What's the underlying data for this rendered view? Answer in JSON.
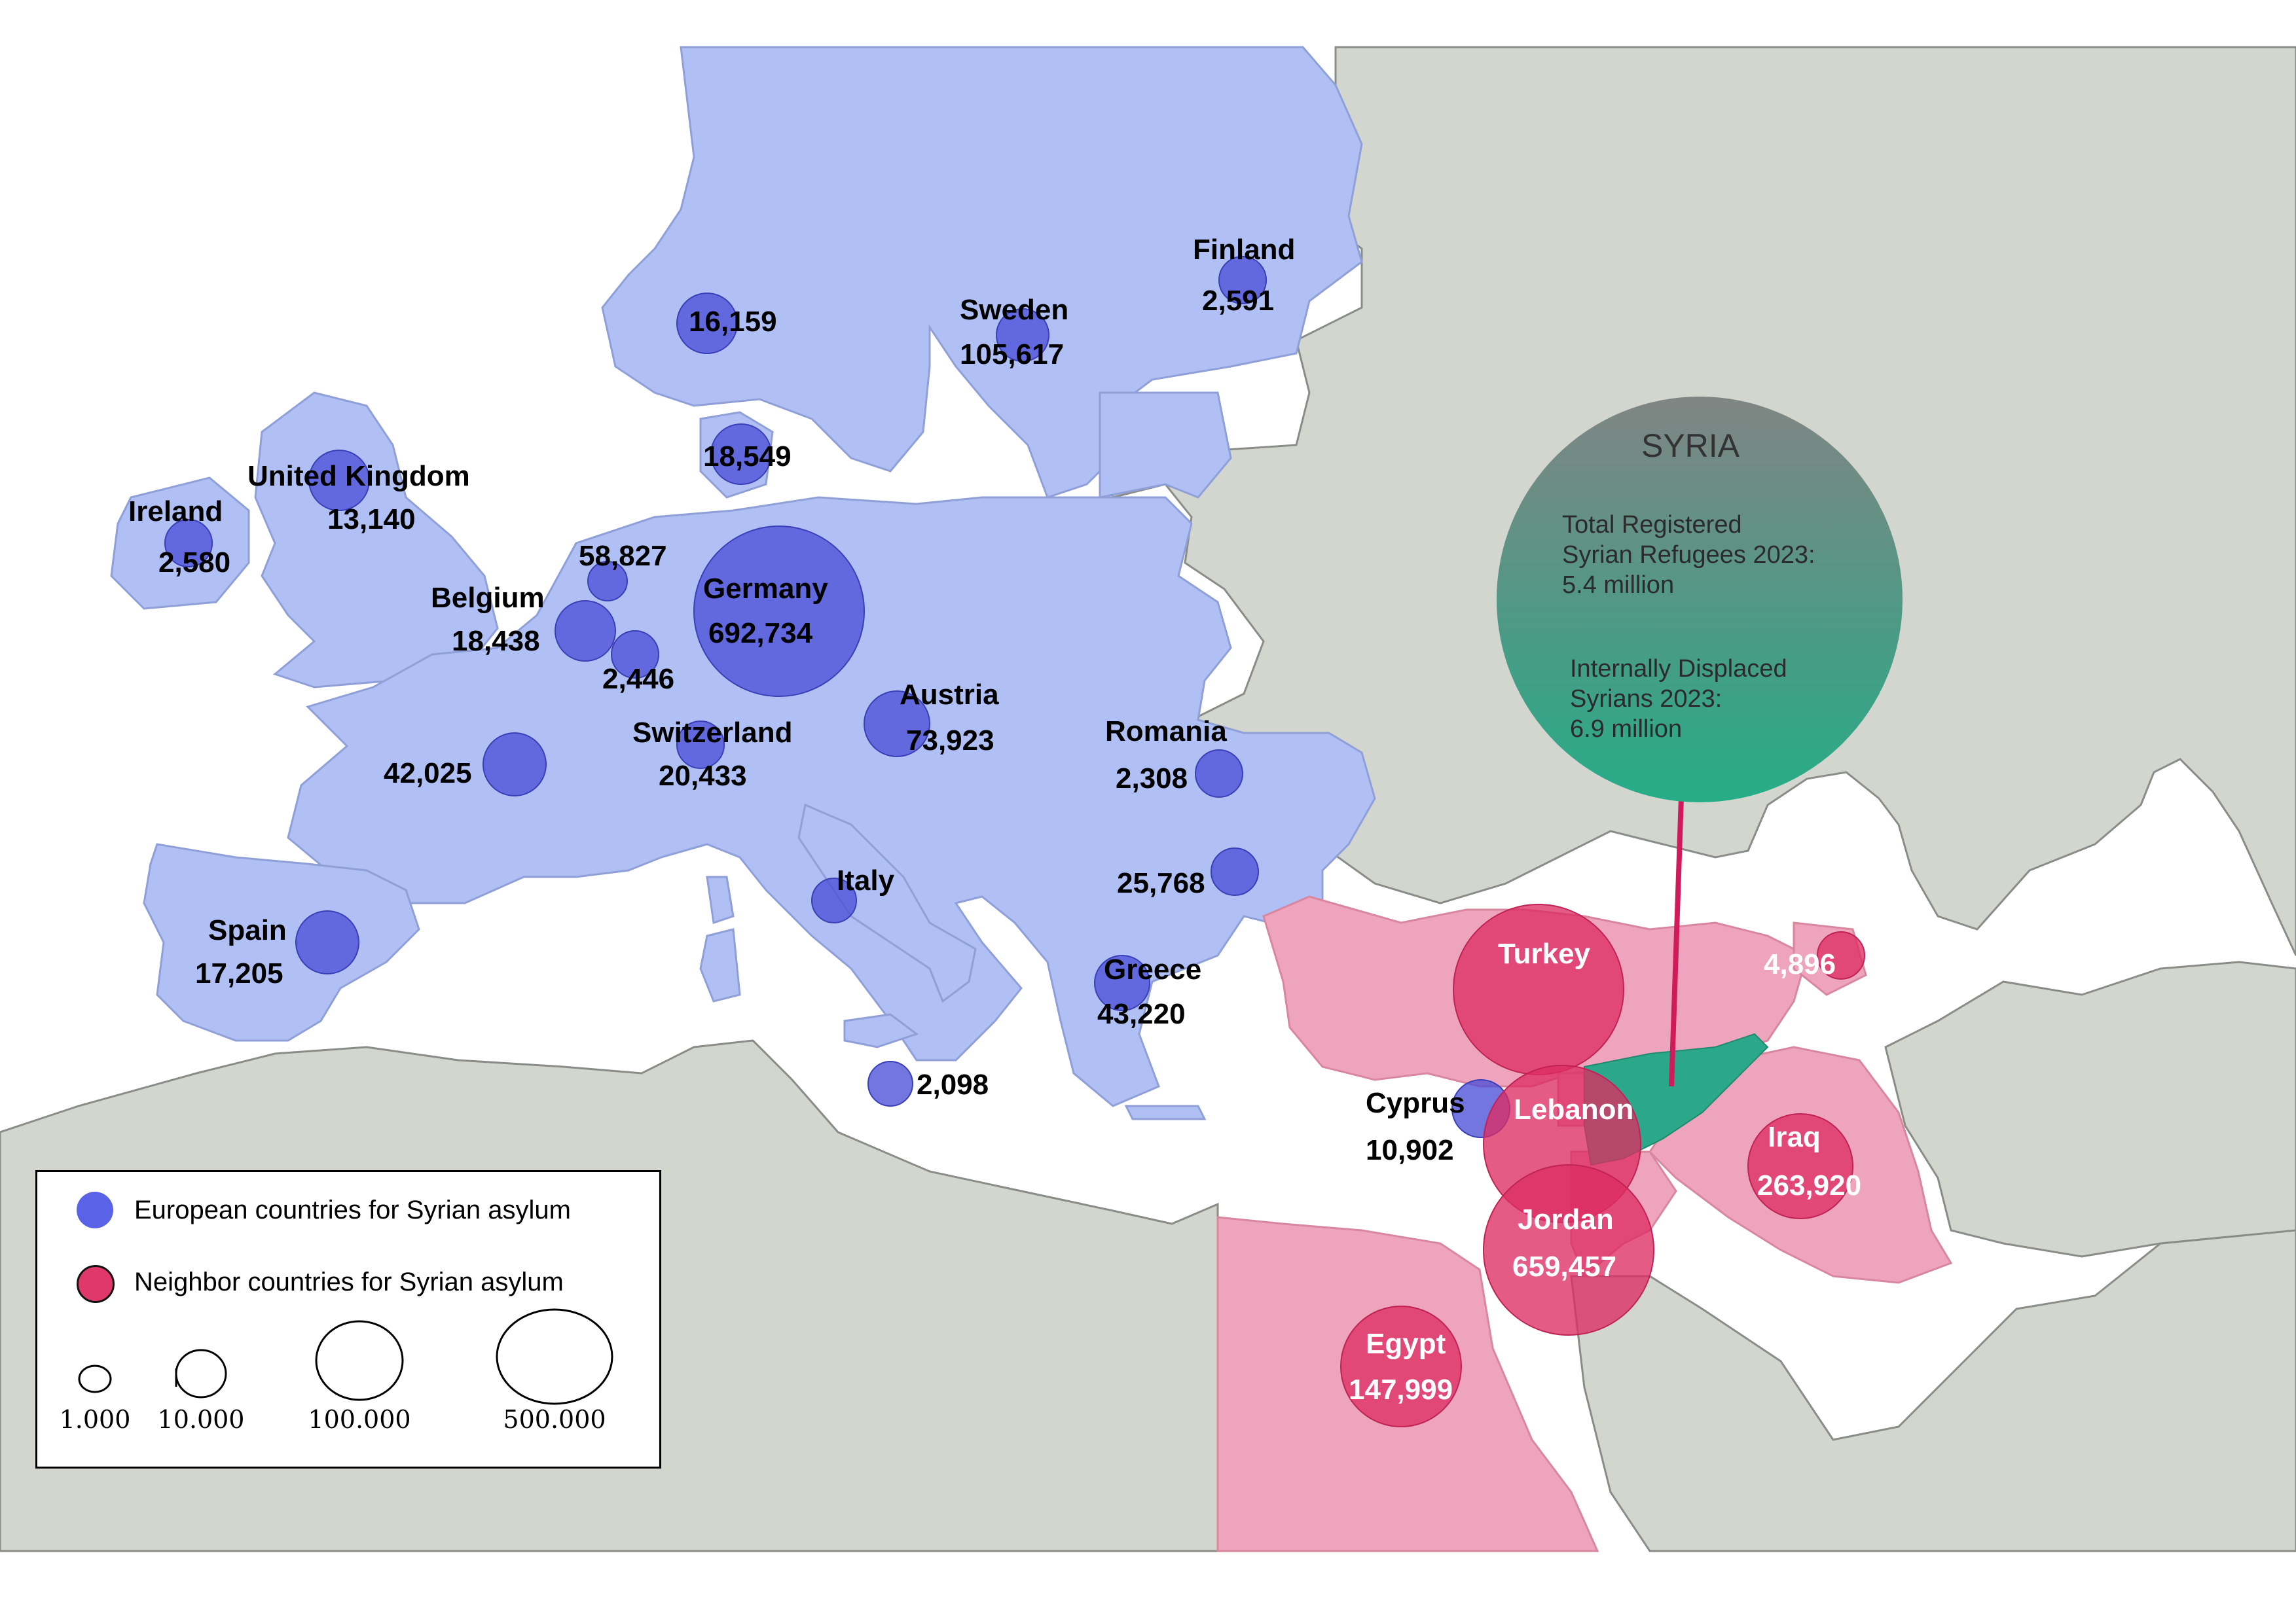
{
  "colors": {
    "background_land": "#d3d6cf",
    "sea": "#ffffff",
    "europe_fill": "#b0c0f4",
    "neighbor_fill": "#efa4bd",
    "european_bubble": "#5a5fe0",
    "neighbor_bubble": "#e03a6b",
    "syria_fill": "#2aa889"
  },
  "syria_callout": {
    "title": "SYRIA",
    "line1": "Total Registered",
    "line2": "Syrian Refugees 2023:",
    "line3": "5.4 million",
    "line4": "Internally Displaced",
    "line5": "Syrians 2023:",
    "line6": "6.9 million"
  },
  "countries": {
    "norway": {
      "value": "16,159",
      "refugees": 16159
    },
    "sweden": {
      "name": "Sweden",
      "value": "105,617",
      "refugees": 105617
    },
    "finland": {
      "name": "Finland",
      "value": "2,591",
      "refugees": 2591
    },
    "denmark": {
      "value": "18,549",
      "refugees": 18549
    },
    "uk": {
      "name": "United Kingdom",
      "value": "13,140",
      "refugees": 13140
    },
    "ireland": {
      "name": "Ireland",
      "value": "2,580",
      "refugees": 2580
    },
    "netherlands": {
      "value": "58,827",
      "refugees": 58827
    },
    "belgium": {
      "name": "Belgium",
      "value": "18,438",
      "refugees": 18438
    },
    "luxembourg": {
      "value": "2,446",
      "refugees": 2446
    },
    "germany": {
      "name": "Germany",
      "value": "692,734",
      "refugees": 692734
    },
    "france": {
      "value": "42,025",
      "refugees": 42025
    },
    "switzerland": {
      "name": "Switzerland",
      "value": "20,433",
      "refugees": 20433
    },
    "austria": {
      "name": "Austria",
      "value": "73,923",
      "refugees": 73923
    },
    "romania": {
      "name": "Romania",
      "value": "2,308",
      "refugees": 2308
    },
    "bulgaria": {
      "value": "25,768",
      "refugees": 25768
    },
    "italy": {
      "name": "Italy",
      "refugees": null
    },
    "malta": {
      "value": "2,098",
      "refugees": 2098
    },
    "spain": {
      "name": "Spain",
      "value": "17,205",
      "refugees": 17205
    },
    "greece": {
      "name": "Greece",
      "value": "43,220",
      "refugees": 43220
    },
    "cyprus": {
      "name": "Cyprus",
      "value": "10,902",
      "refugees": 10902
    },
    "turkey": {
      "name": "Turkey",
      "refugees": null
    },
    "armenia": {
      "value": "4,896",
      "refugees": 4896
    },
    "lebanon": {
      "name": "Lebanon",
      "refugees": null
    },
    "iraq": {
      "name": "Iraq",
      "value": "263,920",
      "refugees": 263920
    },
    "jordan": {
      "name": "Jordan",
      "value": "659,457",
      "refugees": 659457
    },
    "egypt": {
      "name": "Egypt",
      "value": "147,999",
      "refugees": 147999
    }
  },
  "legend": {
    "european_label": "European countries for Syrian asylum",
    "neighbor_label": "Neighbor countries for Syrian asylum",
    "sizes": [
      "1.000",
      "10.000",
      "100.000",
      "500.000"
    ]
  }
}
